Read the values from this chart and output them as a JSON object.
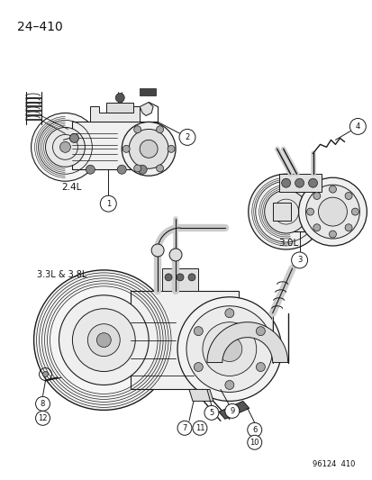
{
  "background_color": "#ffffff",
  "line_color": "#1a1a1a",
  "text_color": "#111111",
  "fig_width": 4.14,
  "fig_height": 5.33,
  "dpi": 100,
  "page_id": "24–410",
  "footer_id": "96124  410",
  "label_24L": "2.4L",
  "label_33_38L": "3.3L & 3.8L",
  "label_30L": "3.0L"
}
